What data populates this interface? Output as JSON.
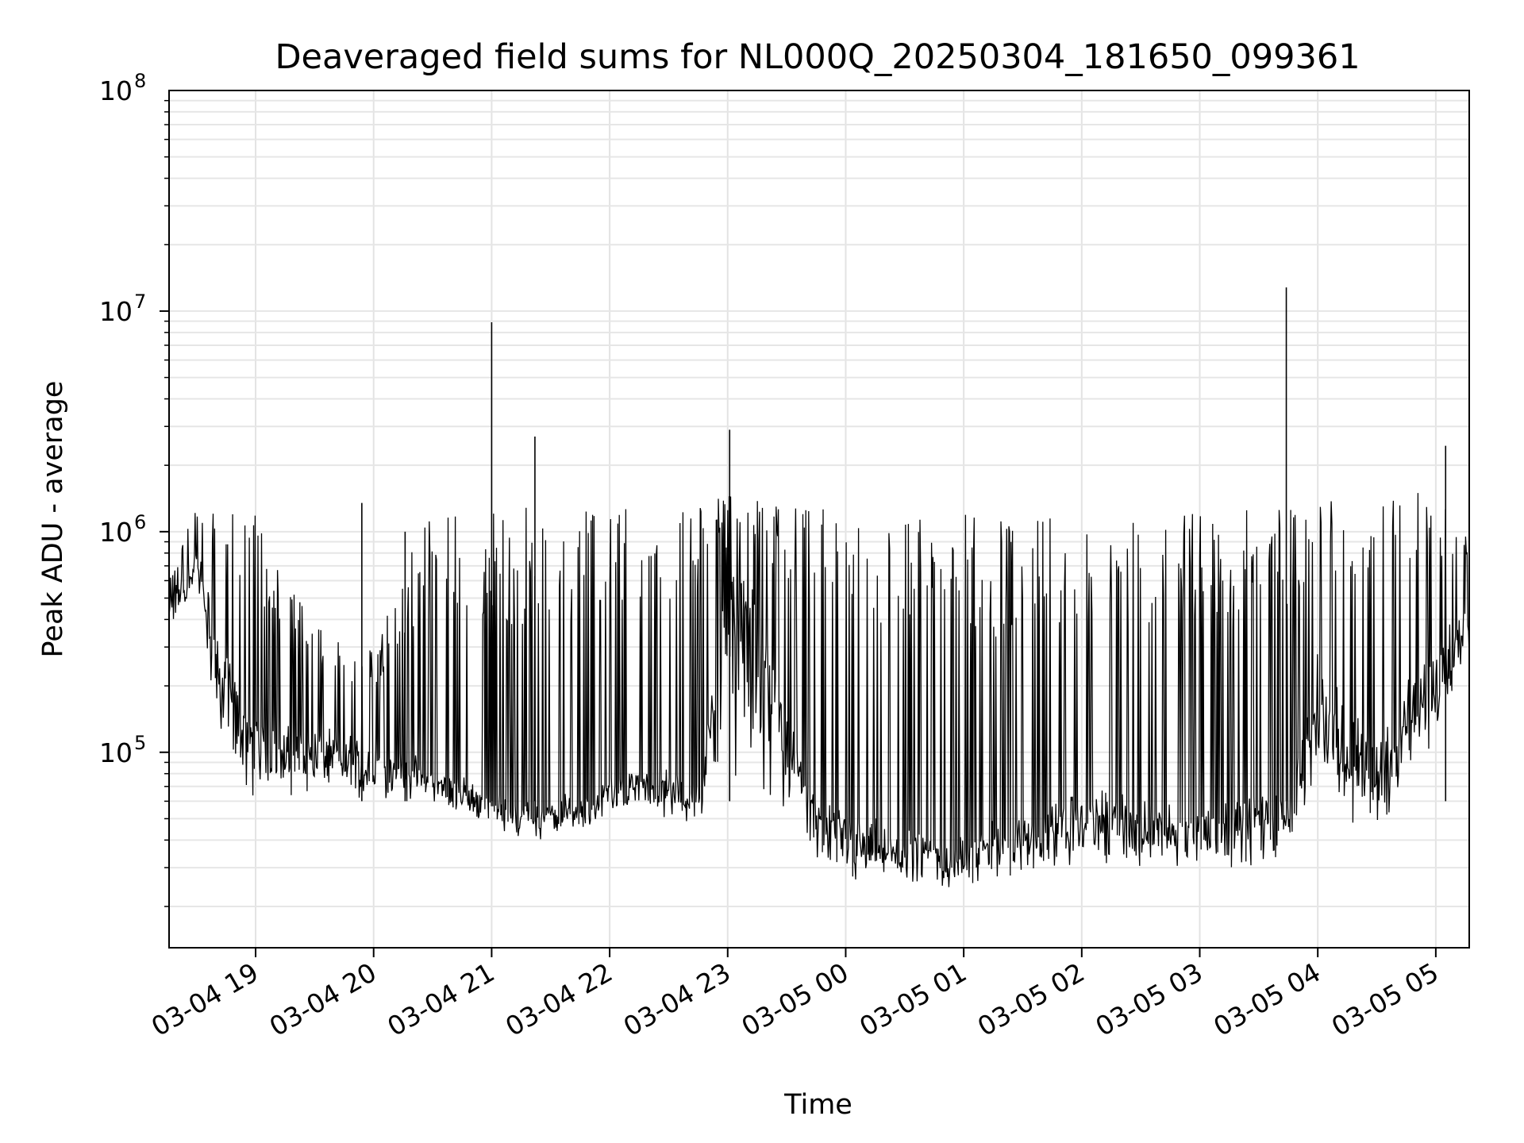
{
  "chart_data": {
    "type": "line",
    "title": "Deaveraged field sums for NL000Q_20250304_181650_099361",
    "xlabel": "Time",
    "ylabel": "Peak ADU - average",
    "yscale": "log",
    "ylim": [
      13000,
      100000000
    ],
    "xlim": [
      "2025-03-04 18:16",
      "2025-03-05 05:17"
    ],
    "grid": true,
    "line_color": "#000000",
    "x_tick_labels": [
      "03-04 19",
      "03-04 20",
      "03-04 21",
      "03-04 22",
      "03-04 23",
      "03-05 00",
      "03-05 01",
      "03-05 02",
      "03-05 03",
      "03-05 04",
      "03-05 05"
    ],
    "y_ticks": [
      {
        "base": "10",
        "exp": "5",
        "value": 100000
      },
      {
        "base": "10",
        "exp": "6",
        "value": 1000000
      },
      {
        "base": "10",
        "exp": "7",
        "value": 10000000
      },
      {
        "base": "10",
        "exp": "8",
        "value": 100000000
      }
    ],
    "series": [
      {
        "x": [
          "2025-03-04 18:16",
          "2025-03-04 18:30",
          "2025-03-04 18:45",
          "2025-03-04 19:00",
          "2025-03-04 19:15",
          "2025-03-04 19:30",
          "2025-03-04 19:45",
          "2025-03-04 20:00",
          "2025-03-04 20:15",
          "2025-03-04 20:30",
          "2025-03-04 20:45",
          "2025-03-04 21:00",
          "2025-03-04 21:15",
          "2025-03-04 21:30",
          "2025-03-04 21:45",
          "2025-03-04 22:00",
          "2025-03-04 22:15",
          "2025-03-04 22:30",
          "2025-03-04 22:45",
          "2025-03-04 23:00",
          "2025-03-04 23:15",
          "2025-03-04 23:30",
          "2025-03-04 23:45",
          "2025-03-05 00:00",
          "2025-03-05 00:15",
          "2025-03-05 00:30",
          "2025-03-05 00:45",
          "2025-03-05 01:00",
          "2025-03-05 01:15",
          "2025-03-05 01:30",
          "2025-03-05 01:45",
          "2025-03-05 02:00",
          "2025-03-05 02:15",
          "2025-03-05 02:30",
          "2025-03-05 02:45",
          "2025-03-05 03:00",
          "2025-03-05 03:15",
          "2025-03-05 03:30",
          "2025-03-05 03:45",
          "2025-03-05 04:00",
          "2025-03-05 04:15",
          "2025-03-05 04:30",
          "2025-03-05 04:45",
          "2025-03-05 05:00",
          "2025-03-05 05:17"
        ],
        "low": [
          350000,
          600000,
          70000,
          60000,
          60000,
          65000,
          65000,
          60000,
          60000,
          60000,
          55000,
          45000,
          40000,
          42000,
          45000,
          55000,
          60000,
          50000,
          45000,
          60000,
          55000,
          55000,
          30000,
          25000,
          25000,
          23000,
          25000,
          22000,
          25000,
          28000,
          30000,
          30000,
          30000,
          28000,
          28000,
          27000,
          30000,
          30000,
          35000,
          60000,
          50000,
          40000,
          60000,
          100000,
          250000
        ],
        "high": [
          600000,
          1400000,
          1300000,
          1200000,
          600000,
          400000,
          300000,
          300000,
          800000,
          1200000,
          1300000,
          1350000,
          1300000,
          1350000,
          1350000,
          1400000,
          1400000,
          1400000,
          1450000,
          1500000,
          1400000,
          1300000,
          1300000,
          1250000,
          1250000,
          1200000,
          1200000,
          1200000,
          1200000,
          1200000,
          1200000,
          1250000,
          1200000,
          1200000,
          1200000,
          1250000,
          1300000,
          1300000,
          1300000,
          1400000,
          1400000,
          1400000,
          1500000,
          1500000,
          900000
        ],
        "mid": [
          450000,
          800000,
          250000,
          150000,
          120000,
          120000,
          110000,
          100000,
          90000,
          80000,
          70000,
          60000,
          55000,
          55000,
          60000,
          70000,
          80000,
          75000,
          70000,
          900000,
          500000,
          150000,
          60000,
          50000,
          45000,
          40000,
          40000,
          40000,
          45000,
          50000,
          55000,
          60000,
          60000,
          55000,
          55000,
          55000,
          55000,
          60000,
          60000,
          250000,
          150000,
          120000,
          200000,
          300000,
          500000
        ]
      }
    ],
    "spikes": [
      {
        "x": "2025-03-04 21:00",
        "y": 8900000
      },
      {
        "x": "2025-03-04 21:22",
        "y": 2700000
      },
      {
        "x": "2025-03-04 23:01",
        "y": 2900000
      },
      {
        "x": "2025-03-05 03:44",
        "y": 12800000
      },
      {
        "x": "2025-03-05 05:05",
        "y": 2450000
      },
      {
        "x": "2025-03-04 20:16",
        "y": 1000000
      },
      {
        "x": "2025-03-04 19:54",
        "y": 1350000
      }
    ]
  }
}
